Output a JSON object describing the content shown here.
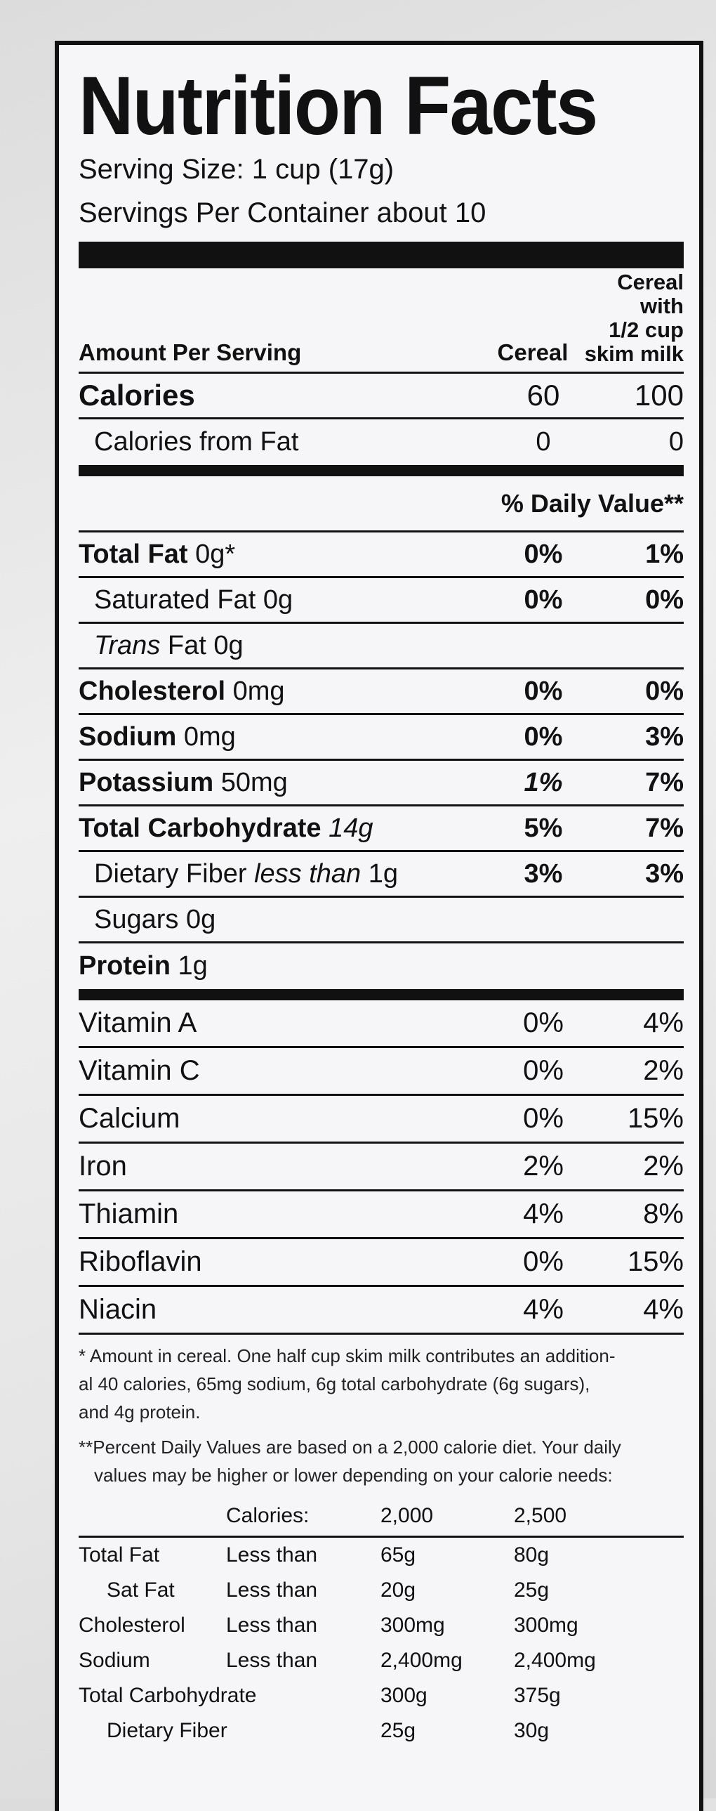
{
  "title": "Nutrition Facts",
  "serving_size": "Serving Size: 1 cup (17g)",
  "servings_per_container": "Servings Per Container about 10",
  "header": {
    "amount_per_serving": "Amount Per Serving",
    "col1": "Cereal",
    "col2_line1": "Cereal with",
    "col2_line2": "1/2 cup",
    "col2_line3": "skim milk"
  },
  "calories": {
    "label": "Calories",
    "cereal": "60",
    "with_milk": "100"
  },
  "calories_fat": {
    "label": "Calories from Fat",
    "cereal": "0",
    "with_milk": "0"
  },
  "daily_value_heading": "% Daily Value**",
  "nutrients": [
    {
      "label": "Total Fat",
      "amount": "0g*",
      "cereal": "0%",
      "with_milk": "1%"
    },
    {
      "label": "Saturated Fat",
      "amount": "0g",
      "cereal": "0%",
      "with_milk": "0%"
    },
    {
      "label": "Trans",
      "amount": "Fat 0g",
      "cereal": "",
      "with_milk": ""
    },
    {
      "label": "Cholesterol",
      "amount": "0mg",
      "cereal": "0%",
      "with_milk": "0%"
    },
    {
      "label": "Sodium",
      "amount": "0mg",
      "cereal": "0%",
      "with_milk": "3%"
    },
    {
      "label": "Potassium",
      "amount": "50mg",
      "cereal": "1%",
      "with_milk": "7%"
    },
    {
      "label": "Total Carbohydrate",
      "amount": "14g",
      "cereal": "5%",
      "with_milk": "7%"
    },
    {
      "label": "Dietary Fiber",
      "amount": "less than",
      "amount2": "1g",
      "cereal": "3%",
      "with_milk": "3%"
    },
    {
      "label": "Sugars",
      "amount": "0g",
      "cereal": "",
      "with_milk": ""
    },
    {
      "label": "Protein",
      "amount": "1g",
      "cereal": "",
      "with_milk": ""
    }
  ],
  "vitamins": [
    {
      "label": "Vitamin A",
      "cereal": "0%",
      "with_milk": "4%"
    },
    {
      "label": "Vitamin C",
      "cereal": "0%",
      "with_milk": "2%"
    },
    {
      "label": "Calcium",
      "cereal": "0%",
      "with_milk": "15%"
    },
    {
      "label": "Iron",
      "cereal": "2%",
      "with_milk": "2%"
    },
    {
      "label": "Thiamin",
      "cereal": "4%",
      "with_milk": "8%"
    },
    {
      "label": "Riboflavin",
      "cereal": "0%",
      "with_milk": "15%"
    },
    {
      "label": "Niacin",
      "cereal": "4%",
      "with_milk": "4%"
    }
  ],
  "footnote1_l1": "* Amount in cereal. One half cup skim milk contributes an addition-",
  "footnote1_l2": "al 40 calories, 65mg sodium, 6g total carbohydrate (6g sugars),",
  "footnote1_l3": "and 4g protein.",
  "footnote2_l1": "**Percent Daily Values are based on a 2,000 calorie diet. Your daily",
  "footnote2_l2": "values may be higher or lower depending on your calorie needs:",
  "reference": {
    "calories_label": "Calories:",
    "col1": "2,000",
    "col2": "2,500",
    "rows": [
      {
        "k": "Total Fat",
        "q": "Less than",
        "v1": "65g",
        "v2": "80g"
      },
      {
        "k": "Sat Fat",
        "q": "Less than",
        "v1": "20g",
        "v2": "25g"
      },
      {
        "k": "Cholesterol",
        "q": "Less than",
        "v1": "300mg",
        "v2": "300mg"
      },
      {
        "k": "Sodium",
        "q": "Less than",
        "v1": "2,400mg",
        "v2": "2,400mg"
      },
      {
        "k": "Total Carbohydrate",
        "q": "",
        "v1": "300g",
        "v2": "375g"
      },
      {
        "k": "Dietary Fiber",
        "q": "",
        "v1": "25g",
        "v2": "30g"
      }
    ]
  }
}
